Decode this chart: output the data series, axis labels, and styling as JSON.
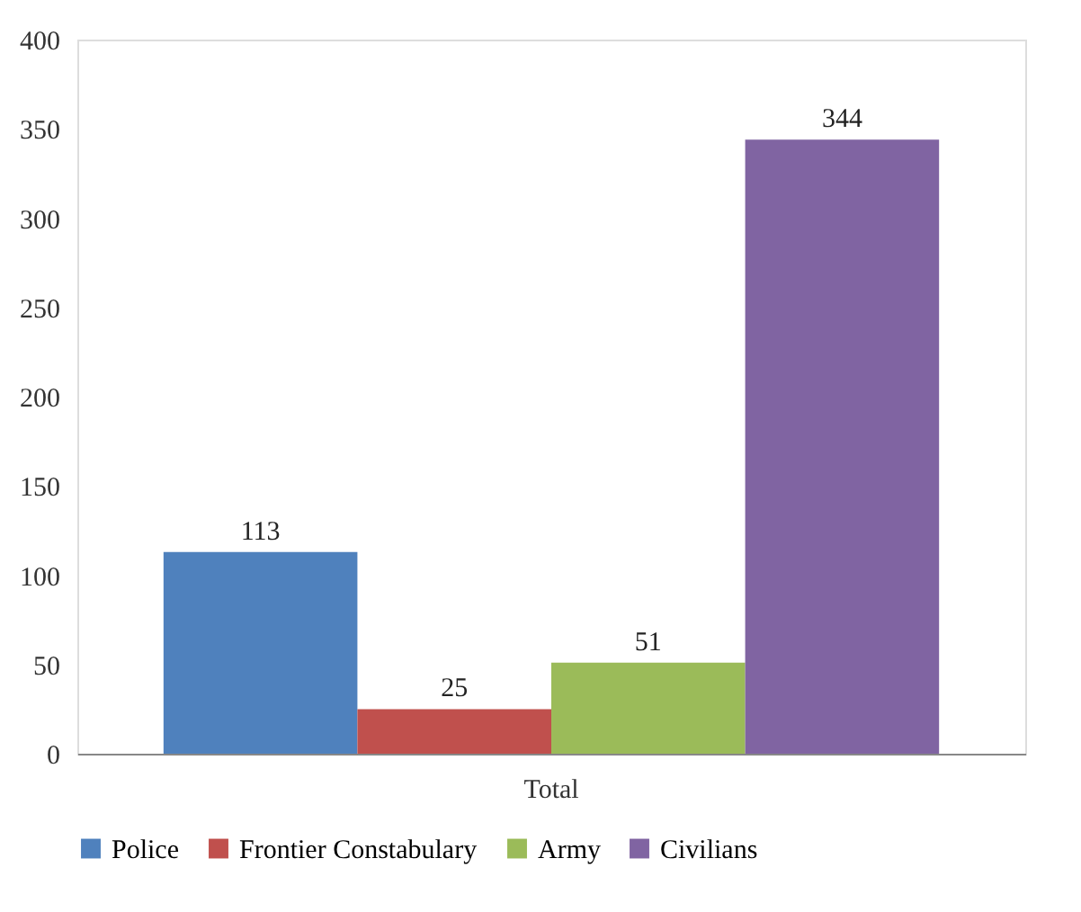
{
  "chart_data": {
    "type": "bar",
    "categories": [
      "Total"
    ],
    "series": [
      {
        "name": "Police",
        "color": "#4f81bd",
        "values": [
          113
        ]
      },
      {
        "name": "Frontier Constabulary",
        "color": "#c0504d",
        "values": [
          25
        ]
      },
      {
        "name": "Army",
        "color": "#9bbb59",
        "values": [
          51
        ]
      },
      {
        "name": "Civilians",
        "color": "#8064a2",
        "values": [
          344
        ]
      }
    ],
    "ylim": [
      0,
      400
    ],
    "yticks": [
      0,
      50,
      100,
      150,
      200,
      250,
      300,
      350,
      400
    ],
    "grid": false,
    "legend": "bottom",
    "data_labels": true
  }
}
